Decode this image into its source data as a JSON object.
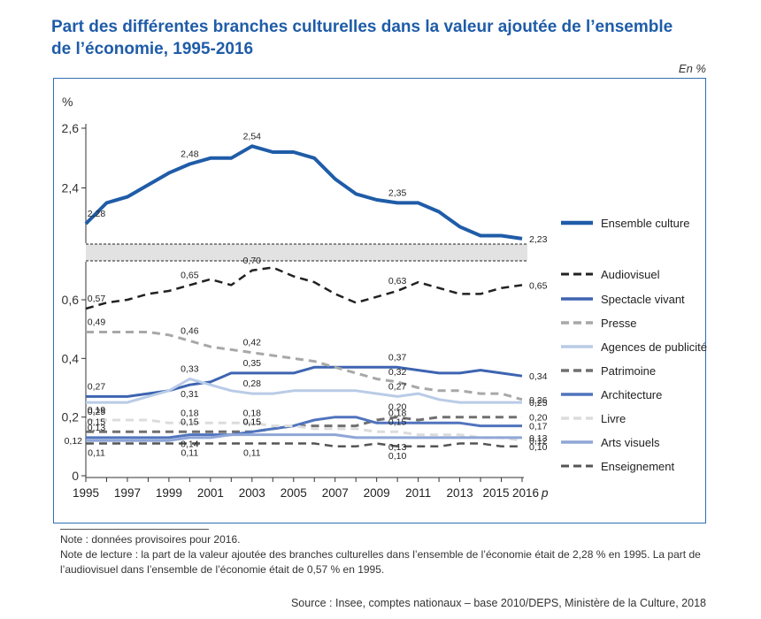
{
  "title": "Part des différentes branches culturelles dans la valeur ajoutée de l’ensemble de l’économie, 1995-2016",
  "unit_label": "En %",
  "notes": [
    "Note : données provisoires pour 2016.",
    "Note de lecture : la part de la valeur ajoutée des branches culturelles dans l’ensemble de l’économie était de 2,28 % en 1995. La part de l’audiovisuel dans l’ensemble de l’économie était de 0,57 % en 1995."
  ],
  "source": "Source : Insee, comptes nationaux – base 2010/DEPS, Ministère de la Culture, 2018",
  "chart_data": {
    "type": "line",
    "ylabel": "%",
    "x": [
      1995,
      1996,
      1997,
      1998,
      1999,
      2000,
      2001,
      2002,
      2003,
      2004,
      2005,
      2006,
      2007,
      2008,
      2009,
      2010,
      2011,
      2012,
      2013,
      2014,
      2015,
      2016
    ],
    "xtick_labels": [
      "1995",
      "1997",
      "1999",
      "2001",
      "2003",
      "2005",
      "2007",
      "2009",
      "2011",
      "2013",
      "2015",
      "2016"
    ],
    "x_suffix": "p",
    "upper_axis": {
      "ylim": [
        2.2,
        2.6
      ],
      "ticks": [
        "2,4",
        "2,6"
      ],
      "tick_values": [
        2.4,
        2.6
      ]
    },
    "lower_axis": {
      "ylim": [
        0,
        0.75
      ],
      "ticks": [
        "0",
        "0,2",
        "0,4",
        "0,6"
      ],
      "tick_values": [
        0,
        0.2,
        0.4,
        0.6
      ]
    },
    "series": [
      {
        "name": "Ensemble culture",
        "axis": "upper",
        "color": "#1f5ca8",
        "dash": "solid",
        "width": 4,
        "values": [
          2.28,
          2.35,
          2.37,
          2.41,
          2.45,
          2.48,
          2.5,
          2.5,
          2.54,
          2.52,
          2.52,
          2.5,
          2.43,
          2.38,
          2.36,
          2.35,
          2.35,
          2.32,
          2.27,
          2.24,
          2.24,
          2.23
        ],
        "labels": [
          {
            "year": 1995,
            "text": "2,28",
            "pos": "above"
          },
          {
            "year": 2000,
            "text": "2,48",
            "pos": "above"
          },
          {
            "year": 2003,
            "text": "2,54",
            "pos": "above"
          },
          {
            "year": 2010,
            "text": "2,35",
            "pos": "above"
          },
          {
            "year": 2016,
            "text": "2,23",
            "pos": "right"
          }
        ]
      },
      {
        "name": "Audiovisuel",
        "axis": "lower",
        "color": "#222222",
        "dash": "dashed",
        "width": 2.5,
        "values": [
          0.57,
          0.59,
          0.6,
          0.62,
          0.63,
          0.65,
          0.67,
          0.65,
          0.7,
          0.71,
          0.68,
          0.66,
          0.62,
          0.59,
          0.61,
          0.63,
          0.66,
          0.64,
          0.62,
          0.62,
          0.64,
          0.65
        ],
        "labels": [
          {
            "year": 1995,
            "text": "0,57",
            "pos": "above"
          },
          {
            "year": 2000,
            "text": "0,65",
            "pos": "above"
          },
          {
            "year": 2003,
            "text": "0,70",
            "pos": "above"
          },
          {
            "year": 2010,
            "text": "0,63",
            "pos": "above"
          },
          {
            "year": 2016,
            "text": "0,65",
            "pos": "right"
          }
        ]
      },
      {
        "name": "Spectacle vivant",
        "axis": "lower",
        "color": "#3d64b1",
        "dash": "solid",
        "width": 3,
        "values": [
          0.27,
          0.27,
          0.27,
          0.28,
          0.29,
          0.31,
          0.32,
          0.35,
          0.35,
          0.35,
          0.35,
          0.37,
          0.37,
          0.37,
          0.37,
          0.37,
          0.36,
          0.35,
          0.35,
          0.36,
          0.35,
          0.34
        ],
        "labels": [
          {
            "year": 1995,
            "text": "0,27",
            "pos": "above"
          },
          {
            "year": 2000,
            "text": "0,31",
            "pos": "below"
          },
          {
            "year": 2003,
            "text": "0,35",
            "pos": "above"
          },
          {
            "year": 2010,
            "text": "0,37",
            "pos": "above"
          },
          {
            "year": 2016,
            "text": "0,34",
            "pos": "right"
          }
        ]
      },
      {
        "name": "Presse",
        "axis": "lower",
        "color": "#a8a8a8",
        "dash": "dashed",
        "width": 3,
        "values": [
          0.49,
          0.49,
          0.49,
          0.49,
          0.48,
          0.46,
          0.44,
          0.43,
          0.42,
          0.41,
          0.4,
          0.39,
          0.37,
          0.35,
          0.33,
          0.32,
          0.3,
          0.29,
          0.29,
          0.28,
          0.28,
          0.26
        ],
        "labels": [
          {
            "year": 1995,
            "text": "0,49",
            "pos": "above"
          },
          {
            "year": 2000,
            "text": "0,46",
            "pos": "above"
          },
          {
            "year": 2003,
            "text": "0,42",
            "pos": "above"
          },
          {
            "year": 2010,
            "text": "0,32",
            "pos": "above"
          },
          {
            "year": 2016,
            "text": "0,26",
            "pos": "right"
          }
        ]
      },
      {
        "name": "Agences de publicité",
        "axis": "lower",
        "color": "#b9cbe6",
        "dash": "solid",
        "width": 3,
        "values": [
          0.25,
          0.25,
          0.25,
          0.27,
          0.29,
          0.33,
          0.31,
          0.29,
          0.28,
          0.28,
          0.29,
          0.29,
          0.29,
          0.29,
          0.28,
          0.27,
          0.28,
          0.26,
          0.25,
          0.25,
          0.25,
          0.25
        ],
        "labels": [
          {
            "year": 1995,
            "text": "0,25",
            "pos": "below"
          },
          {
            "year": 2000,
            "text": "0,33",
            "pos": "above"
          },
          {
            "year": 2003,
            "text": "0,28",
            "pos": "above"
          },
          {
            "year": 2010,
            "text": "0,27",
            "pos": "above"
          },
          {
            "year": 2016,
            "text": "0,25",
            "pos": "right"
          }
        ]
      },
      {
        "name": "Patrimoine",
        "axis": "lower",
        "color": "#707070",
        "dash": "dashed",
        "width": 3,
        "values": [
          0.15,
          0.15,
          0.15,
          0.15,
          0.15,
          0.15,
          0.15,
          0.15,
          0.15,
          0.16,
          0.17,
          0.17,
          0.17,
          0.17,
          0.19,
          0.2,
          0.19,
          0.2,
          0.2,
          0.2,
          0.2,
          0.2
        ],
        "labels": [
          {
            "year": 1995,
            "text": "0,15",
            "pos": "above"
          },
          {
            "year": 2000,
            "text": "0,15",
            "pos": "above"
          },
          {
            "year": 2003,
            "text": "0,15",
            "pos": "above"
          },
          {
            "year": 2010,
            "text": "0,20",
            "pos": "above"
          },
          {
            "year": 2016,
            "text": "0,20",
            "pos": "right"
          }
        ]
      },
      {
        "name": "Architecture",
        "axis": "lower",
        "color": "#5074bd",
        "dash": "solid",
        "width": 3,
        "values": [
          0.13,
          0.13,
          0.13,
          0.13,
          0.13,
          0.14,
          0.14,
          0.14,
          0.15,
          0.16,
          0.17,
          0.19,
          0.2,
          0.2,
          0.18,
          0.18,
          0.18,
          0.18,
          0.18,
          0.17,
          0.17,
          0.17
        ],
        "labels": [
          {
            "year": 1995,
            "text": "0,13",
            "pos": "above"
          },
          {
            "year": 2000,
            "text": "0,14",
            "pos": "below"
          },
          {
            "year": 2003,
            "text": "0,15",
            "pos": "above"
          },
          {
            "year": 2010,
            "text": "0,18",
            "pos": "above"
          },
          {
            "year": 2016,
            "text": "0,17",
            "pos": "right"
          }
        ]
      },
      {
        "name": "Livre",
        "axis": "lower",
        "color": "#dcdcdc",
        "dash": "dashed",
        "width": 3,
        "values": [
          0.19,
          0.19,
          0.19,
          0.19,
          0.18,
          0.18,
          0.18,
          0.18,
          0.18,
          0.17,
          0.17,
          0.16,
          0.16,
          0.16,
          0.15,
          0.15,
          0.14,
          0.14,
          0.14,
          0.13,
          0.13,
          0.12
        ],
        "labels": [
          {
            "year": 1995,
            "text": "0,19",
            "pos": "above"
          },
          {
            "year": 2000,
            "text": "0,18",
            "pos": "above"
          },
          {
            "year": 2003,
            "text": "0,18",
            "pos": "above"
          },
          {
            "year": 2010,
            "text": "0,15",
            "pos": "above"
          },
          {
            "year": 2016,
            "text": "0,12",
            "pos": "right"
          }
        ]
      },
      {
        "name": "Arts visuels",
        "axis": "lower",
        "color": "#8fa6d6",
        "dash": "solid",
        "width": 3,
        "values": [
          0.12,
          0.12,
          0.12,
          0.12,
          0.12,
          0.13,
          0.13,
          0.14,
          0.14,
          0.14,
          0.14,
          0.14,
          0.14,
          0.13,
          0.13,
          0.13,
          0.13,
          0.13,
          0.13,
          0.13,
          0.13,
          0.13
        ],
        "labels": [
          {
            "year": 1995,
            "text": "0,12",
            "pos": "left"
          },
          {
            "year": 2016,
            "text": "0,13",
            "pos": "right"
          },
          {
            "year": 2010,
            "text": "0,13",
            "pos": "below"
          }
        ]
      },
      {
        "name": "Enseignement",
        "axis": "lower",
        "color": "#555555",
        "dash": "dashed",
        "width": 2.5,
        "values": [
          0.11,
          0.11,
          0.11,
          0.11,
          0.11,
          0.11,
          0.11,
          0.11,
          0.11,
          0.11,
          0.11,
          0.11,
          0.1,
          0.1,
          0.11,
          0.1,
          0.1,
          0.1,
          0.11,
          0.11,
          0.1,
          0.1
        ],
        "labels": [
          {
            "year": 1995,
            "text": "0,11",
            "pos": "below"
          },
          {
            "year": 2000,
            "text": "0,11",
            "pos": "below"
          },
          {
            "year": 2003,
            "text": "0,11",
            "pos": "below"
          },
          {
            "year": 2010,
            "text": "0,10",
            "pos": "below"
          },
          {
            "year": 2016,
            "text": "0,10",
            "pos": "right"
          }
        ]
      }
    ]
  }
}
